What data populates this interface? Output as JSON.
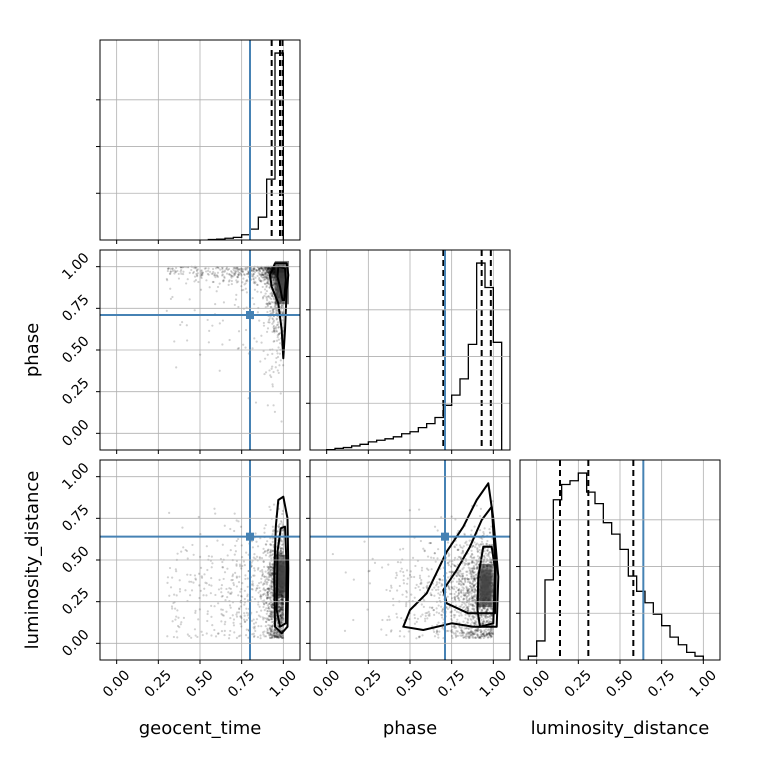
{
  "chart_data": {
    "type": "corner",
    "parameters": [
      {
        "name": "geocent_time",
        "label": "geocent_time",
        "truth": 0.8,
        "range": [
          -0.1,
          1.1
        ],
        "quantiles": [
          0.93,
          0.98,
          0.995
        ]
      },
      {
        "name": "phase",
        "label": "phase",
        "truth": 0.71,
        "range": [
          -0.1,
          1.1
        ],
        "quantiles": [
          0.7,
          0.93,
          0.985
        ]
      },
      {
        "name": "luminosity_distance",
        "label": "luminosity_distance",
        "truth": 0.64,
        "range": [
          -0.1,
          1.1
        ],
        "quantiles": [
          0.14,
          0.31,
          0.58
        ]
      }
    ],
    "ticks": [
      0.0,
      0.25,
      0.5,
      0.75,
      1.0
    ],
    "tick_labels": [
      "0.00",
      "0.25",
      "0.50",
      "0.75",
      "1.00"
    ],
    "histograms": [
      {
        "parameter": "geocent_time",
        "bins": [
          0.55,
          0.6,
          0.65,
          0.7,
          0.75,
          0.8,
          0.85,
          0.9,
          0.95,
          1.0
        ],
        "values": [
          0.002,
          0.004,
          0.008,
          0.012,
          0.024,
          0.05,
          0.105,
          0.28,
          0.86
        ]
      },
      {
        "parameter": "phase",
        "bins": [
          0.0,
          0.05,
          0.1,
          0.15,
          0.2,
          0.25,
          0.3,
          0.35,
          0.4,
          0.45,
          0.5,
          0.55,
          0.6,
          0.65,
          0.7,
          0.75,
          0.8,
          0.85,
          0.9,
          0.95,
          1.0,
          1.05
        ],
        "values": [
          0.002,
          0.008,
          0.012,
          0.02,
          0.028,
          0.04,
          0.048,
          0.055,
          0.065,
          0.08,
          0.09,
          0.11,
          0.13,
          0.16,
          0.22,
          0.27,
          0.35,
          0.52,
          0.92,
          0.8,
          0.53
        ]
      },
      {
        "parameter": "luminosity_distance",
        "bins": [
          -0.05,
          0.0,
          0.05,
          0.1,
          0.15,
          0.2,
          0.25,
          0.3,
          0.35,
          0.4,
          0.45,
          0.5,
          0.55,
          0.6,
          0.65,
          0.7,
          0.75,
          0.8,
          0.85,
          0.9,
          0.95,
          1.0
        ],
        "values": [
          0.01,
          0.05,
          0.21,
          0.42,
          0.46,
          0.47,
          0.49,
          0.44,
          0.41,
          0.36,
          0.33,
          0.29,
          0.22,
          0.18,
          0.15,
          0.12,
          0.09,
          0.06,
          0.04,
          0.02,
          0.01
        ]
      }
    ],
    "contours": [
      {
        "x": "geocent_time",
        "y": "phase",
        "levels": [
          [
            [
              0.95,
              1.02
            ],
            [
              1.02,
              1.02
            ],
            [
              1.03,
              0.95
            ],
            [
              1.02,
              0.86
            ],
            [
              1.01,
              0.62
            ],
            [
              1.0,
              0.45
            ],
            [
              0.99,
              0.62
            ],
            [
              0.97,
              0.78
            ],
            [
              0.93,
              0.88
            ],
            [
              0.92,
              0.95
            ]
          ],
          [
            [
              0.97,
              1.0
            ],
            [
              1.01,
              0.99
            ],
            [
              1.015,
              0.92
            ],
            [
              1.005,
              0.8
            ],
            [
              0.995,
              0.8
            ],
            [
              0.98,
              0.88
            ],
            [
              0.965,
              0.94
            ]
          ]
        ]
      },
      {
        "x": "geocent_time",
        "y": "luminosity_distance",
        "levels": [
          [
            [
              0.97,
              0.86
            ],
            [
              1.0,
              0.88
            ],
            [
              1.025,
              0.75
            ],
            [
              1.03,
              0.45
            ],
            [
              1.025,
              0.1
            ],
            [
              0.99,
              0.06
            ],
            [
              0.95,
              0.1
            ],
            [
              0.945,
              0.4
            ],
            [
              0.955,
              0.7
            ]
          ],
          [
            [
              0.985,
              0.69
            ],
            [
              1.01,
              0.7
            ],
            [
              1.02,
              0.45
            ],
            [
              1.015,
              0.12
            ],
            [
              0.98,
              0.1
            ],
            [
              0.96,
              0.2
            ],
            [
              0.965,
              0.55
            ]
          ]
        ]
      },
      {
        "x": "phase",
        "y": "luminosity_distance",
        "levels": [
          [
            [
              0.58,
              0.08
            ],
            [
              0.75,
              0.12
            ],
            [
              0.88,
              0.1
            ],
            [
              1.02,
              0.1
            ],
            [
              1.03,
              0.4
            ],
            [
              1.0,
              0.75
            ],
            [
              0.97,
              0.96
            ],
            [
              0.9,
              0.86
            ],
            [
              0.82,
              0.7
            ],
            [
              0.72,
              0.55
            ],
            [
              0.6,
              0.3
            ],
            [
              0.5,
              0.2
            ],
            [
              0.46,
              0.1
            ]
          ],
          [
            [
              0.72,
              0.24
            ],
            [
              0.85,
              0.18
            ],
            [
              1.01,
              0.18
            ],
            [
              1.015,
              0.45
            ],
            [
              0.99,
              0.82
            ],
            [
              0.93,
              0.74
            ],
            [
              0.86,
              0.58
            ],
            [
              0.78,
              0.44
            ],
            [
              0.7,
              0.32
            ]
          ],
          [
            [
              0.92,
              0.1
            ],
            [
              1.0,
              0.12
            ],
            [
              1.01,
              0.45
            ],
            [
              0.99,
              0.58
            ],
            [
              0.94,
              0.58
            ],
            [
              0.91,
              0.4
            ],
            [
              0.905,
              0.2
            ]
          ]
        ]
      }
    ]
  }
}
